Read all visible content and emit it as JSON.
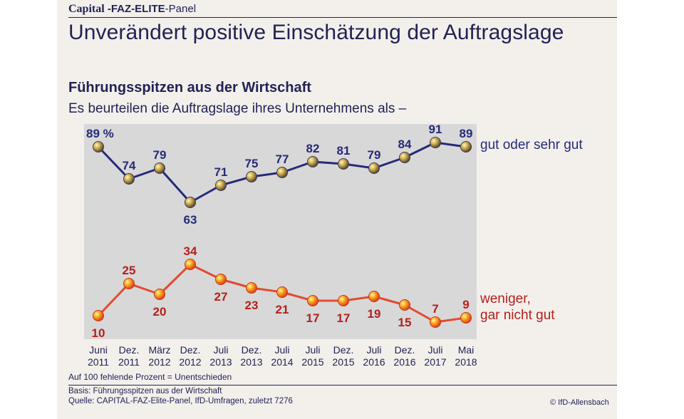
{
  "header": {
    "brand_capital": "Capital",
    "brand_dash": " -",
    "brand_faz": "FAZ-ELITE",
    "brand_panel": "-Panel",
    "title": "Unverändert positive Einschätzung der Auftragslage"
  },
  "subtitle": "Führungsspitzen aus der Wirtschaft",
  "question": "Es beurteilen die Auftragslage ihres Unternehmens als –",
  "footer": {
    "note": "Auf 100 fehlende Prozent = Unentschieden",
    "basis": "Basis: Führungsspitzen aus der Wirtschaft",
    "source": "Quelle: CAPITAL-FAZ-Elite-Panel, IfD-Umfragen, zuletzt 7276",
    "copyright": "© IfD-Allensbach"
  },
  "colors": {
    "good_line": "#262a78",
    "bad_line": "#e24a30",
    "good_label": "#262a78",
    "bad_label": "#b3201c",
    "plot_bg": "#d8d8d8"
  },
  "chart_data": {
    "type": "line",
    "x_months": [
      "Juni",
      "Dez.",
      "März",
      "Dez.",
      "Juli",
      "Dez.",
      "Juli",
      "Juli",
      "Dez.",
      "Juli",
      "Dez.",
      "Juli",
      "Mai"
    ],
    "x_years": [
      "2011",
      "2011",
      "2012",
      "2012",
      "2013",
      "2013",
      "2014",
      "2015",
      "2015",
      "2016",
      "2016",
      "2017",
      "2018"
    ],
    "ylim": [
      0,
      100
    ],
    "series": [
      {
        "name": "gut oder sehr gut",
        "values": [
          89,
          74,
          79,
          63,
          71,
          75,
          77,
          82,
          81,
          79,
          84,
          91,
          89
        ],
        "labels": [
          "89 %",
          "74",
          "79",
          "63",
          "71",
          "75",
          "77",
          "82",
          "81",
          "79",
          "84",
          "91",
          "89"
        ]
      },
      {
        "name_line1": "weniger,",
        "name_line2": "gar nicht gut",
        "values": [
          10,
          25,
          20,
          34,
          27,
          23,
          21,
          17,
          17,
          19,
          15,
          7,
          9
        ],
        "labels": [
          "10",
          "25",
          "20",
          "34",
          "27",
          "23",
          "21",
          "17",
          "17",
          "19",
          "15",
          "7",
          "9"
        ]
      }
    ]
  }
}
